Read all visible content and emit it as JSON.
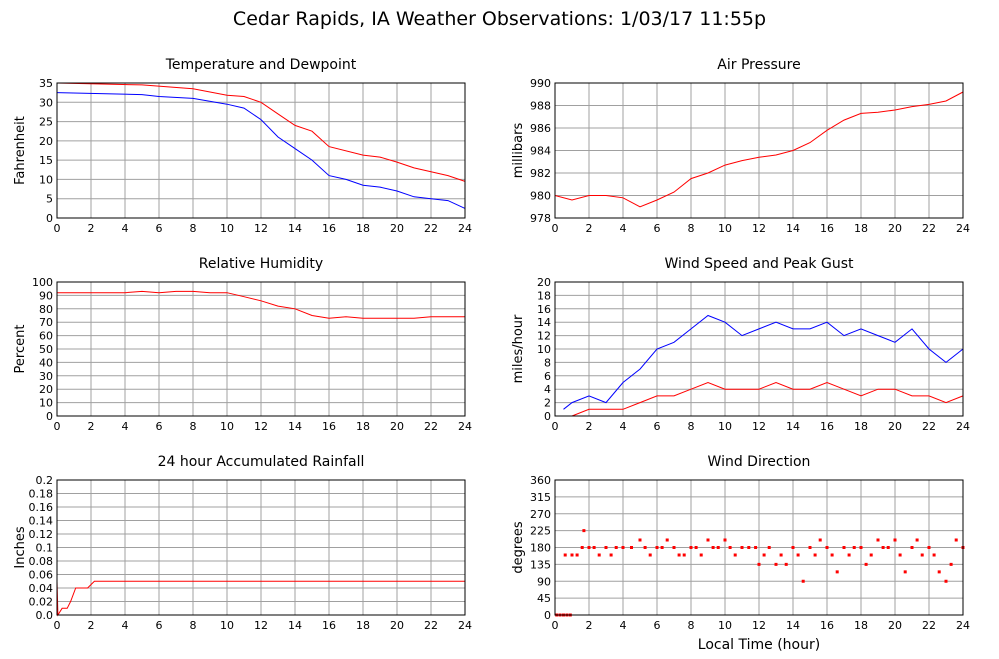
{
  "page": {
    "title": "Cedar Rapids, IA Weather Observations: 1/03/17 11:55p",
    "x_axis_label": "Local Time (hour)"
  },
  "colors": {
    "red": "#ff0000",
    "blue": "#0000ff",
    "grid": "#a0a0a0"
  },
  "chart_data": [
    {
      "id": "temp",
      "type": "line",
      "title": "Temperature and Dewpoint",
      "ylabel": "Fahrenheit",
      "xlim": [
        0,
        24
      ],
      "ylim": [
        0,
        35
      ],
      "x_ticks": [
        0,
        2,
        4,
        6,
        8,
        10,
        12,
        14,
        16,
        18,
        20,
        22,
        24
      ],
      "y_ticks": [
        0,
        5,
        10,
        15,
        20,
        25,
        30,
        35
      ],
      "grid": true,
      "series": [
        {
          "color": "red",
          "points": [
            [
              0,
              35
            ],
            [
              5,
              34.5
            ],
            [
              8,
              33.5
            ],
            [
              10,
              31.8
            ],
            [
              11,
              31.5
            ],
            [
              12,
              30
            ],
            [
              13,
              27
            ],
            [
              14,
              24
            ],
            [
              15,
              22.5
            ],
            [
              16,
              18.5
            ],
            [
              18,
              16.3
            ],
            [
              19,
              15.8
            ],
            [
              20,
              14.5
            ],
            [
              21,
              13
            ],
            [
              22,
              12
            ],
            [
              23,
              11
            ],
            [
              24,
              9.5
            ]
          ]
        },
        {
          "color": "blue",
          "points": [
            [
              0,
              32.5
            ],
            [
              5,
              32
            ],
            [
              6,
              31.5
            ],
            [
              8,
              31
            ],
            [
              10,
              29.5
            ],
            [
              11,
              28.5
            ],
            [
              12,
              25.5
            ],
            [
              13,
              21
            ],
            [
              14,
              18
            ],
            [
              15,
              15
            ],
            [
              16,
              11
            ],
            [
              17,
              10
            ],
            [
              18,
              8.5
            ],
            [
              19,
              8
            ],
            [
              20,
              7
            ],
            [
              21,
              5.5
            ],
            [
              22,
              5
            ],
            [
              23,
              4.5
            ],
            [
              24,
              2.5
            ]
          ]
        }
      ]
    },
    {
      "id": "pressure",
      "type": "line",
      "title": "Air Pressure",
      "ylabel": "millibars",
      "xlim": [
        0,
        24
      ],
      "ylim": [
        978,
        990
      ],
      "x_ticks": [
        0,
        2,
        4,
        6,
        8,
        10,
        12,
        14,
        16,
        18,
        20,
        22,
        24
      ],
      "y_ticks": [
        978,
        980,
        982,
        984,
        986,
        988,
        990
      ],
      "grid": true,
      "series": [
        {
          "color": "red",
          "points": [
            [
              0,
              980
            ],
            [
              1,
              979.6
            ],
            [
              2,
              980
            ],
            [
              3,
              980
            ],
            [
              4,
              979.8
            ],
            [
              5,
              979
            ],
            [
              6,
              979.6
            ],
            [
              7,
              980.3
            ],
            [
              8,
              981.5
            ],
            [
              9,
              982
            ],
            [
              10,
              982.7
            ],
            [
              11,
              983.1
            ],
            [
              12,
              983.4
            ],
            [
              13,
              983.6
            ],
            [
              14,
              984
            ],
            [
              15,
              984.7
            ],
            [
              16,
              985.8
            ],
            [
              17,
              986.7
            ],
            [
              18,
              987.3
            ],
            [
              19,
              987.4
            ],
            [
              20,
              987.6
            ],
            [
              21,
              987.9
            ],
            [
              22,
              988.1
            ],
            [
              23,
              988.4
            ],
            [
              24,
              989.2
            ]
          ]
        }
      ]
    },
    {
      "id": "rh",
      "type": "line",
      "title": "Relative Humidity",
      "ylabel": "Percent",
      "xlim": [
        0,
        24
      ],
      "ylim": [
        0,
        100
      ],
      "x_ticks": [
        0,
        2,
        4,
        6,
        8,
        10,
        12,
        14,
        16,
        18,
        20,
        22,
        24
      ],
      "y_ticks": [
        0,
        10,
        20,
        30,
        40,
        50,
        60,
        70,
        80,
        90,
        100
      ],
      "grid": true,
      "series": [
        {
          "color": "red",
          "points": [
            [
              0,
              92
            ],
            [
              4,
              92
            ],
            [
              5,
              93
            ],
            [
              6,
              92
            ],
            [
              7,
              93
            ],
            [
              8,
              93
            ],
            [
              9,
              92
            ],
            [
              10,
              92
            ],
            [
              11,
              89
            ],
            [
              12,
              86
            ],
            [
              13,
              82
            ],
            [
              14,
              80
            ],
            [
              15,
              75
            ],
            [
              16,
              73
            ],
            [
              17,
              74
            ],
            [
              18,
              73
            ],
            [
              19,
              73
            ],
            [
              20,
              73
            ],
            [
              21,
              73
            ],
            [
              22,
              74
            ],
            [
              23,
              74
            ],
            [
              24,
              74
            ]
          ]
        }
      ]
    },
    {
      "id": "wind",
      "type": "line",
      "title": "Wind Speed and Peak Gust",
      "ylabel": "miles/hour",
      "xlim": [
        0,
        24
      ],
      "ylim": [
        0,
        20
      ],
      "x_ticks": [
        0,
        2,
        4,
        6,
        8,
        10,
        12,
        14,
        16,
        18,
        20,
        22,
        24
      ],
      "y_ticks": [
        0,
        2,
        4,
        6,
        8,
        10,
        12,
        14,
        16,
        18,
        20
      ],
      "grid": true,
      "series": [
        {
          "color": "blue",
          "points": [
            [
              0.5,
              1
            ],
            [
              1,
              2
            ],
            [
              2,
              3
            ],
            [
              3,
              2
            ],
            [
              4,
              5
            ],
            [
              5,
              7
            ],
            [
              6,
              10
            ],
            [
              7,
              11
            ],
            [
              8,
              13
            ],
            [
              9,
              15
            ],
            [
              10,
              14
            ],
            [
              11,
              12
            ],
            [
              12,
              13
            ],
            [
              13,
              14
            ],
            [
              14,
              13
            ],
            [
              15,
              13
            ],
            [
              16,
              14
            ],
            [
              17,
              12
            ],
            [
              18,
              13
            ],
            [
              19,
              12
            ],
            [
              20,
              11
            ],
            [
              21,
              13
            ],
            [
              22,
              10
            ],
            [
              23,
              8
            ],
            [
              24,
              10
            ]
          ]
        },
        {
          "color": "red",
          "points": [
            [
              1,
              0
            ],
            [
              2,
              1
            ],
            [
              3,
              1
            ],
            [
              4,
              1
            ],
            [
              5,
              2
            ],
            [
              6,
              3
            ],
            [
              7,
              3
            ],
            [
              8,
              4
            ],
            [
              9,
              5
            ],
            [
              10,
              4
            ],
            [
              11,
              4
            ],
            [
              12,
              4
            ],
            [
              13,
              5
            ],
            [
              14,
              4
            ],
            [
              15,
              4
            ],
            [
              16,
              5
            ],
            [
              17,
              4
            ],
            [
              18,
              3
            ],
            [
              19,
              4
            ],
            [
              20,
              4
            ],
            [
              21,
              3
            ],
            [
              22,
              3
            ],
            [
              23,
              2
            ],
            [
              24,
              3
            ]
          ]
        }
      ]
    },
    {
      "id": "rain",
      "type": "line",
      "title": "24 hour Accumulated Rainfall",
      "ylabel": "Inches",
      "xlim": [
        0,
        24
      ],
      "ylim": [
        0,
        0.2
      ],
      "x_ticks": [
        0,
        2,
        4,
        6,
        8,
        10,
        12,
        14,
        16,
        18,
        20,
        22,
        24
      ],
      "y_ticks": [
        0,
        0.02,
        0.04,
        0.06,
        0.08,
        0.1,
        0.12,
        0.14,
        0.16,
        0.18,
        0.2
      ],
      "y_tick_labels": [
        "0.0",
        "0.02",
        "0.04",
        "0.06",
        "0.08",
        "0.1",
        "0.12",
        "0.14",
        "0.16",
        "0.18",
        "0.2"
      ],
      "grid": true,
      "series": [
        {
          "color": "red",
          "points": [
            [
              0,
              0.05
            ],
            [
              0.05,
              0.0
            ],
            [
              0.3,
              0.01
            ],
            [
              0.6,
              0.01
            ],
            [
              0.8,
              0.02
            ],
            [
              1.1,
              0.04
            ],
            [
              1.8,
              0.04
            ],
            [
              2.2,
              0.05
            ],
            [
              24,
              0.05
            ]
          ]
        }
      ]
    },
    {
      "id": "direction",
      "type": "scatter",
      "title": "Wind Direction",
      "ylabel": "degrees",
      "xlim": [
        0,
        24
      ],
      "ylim": [
        0,
        360
      ],
      "x_ticks": [
        0,
        2,
        4,
        6,
        8,
        10,
        12,
        14,
        16,
        18,
        20,
        22,
        24
      ],
      "y_ticks": [
        0,
        45,
        90,
        135,
        180,
        225,
        270,
        315,
        360
      ],
      "grid": true,
      "series": [
        {
          "color": "red",
          "points": [
            [
              0.1,
              0
            ],
            [
              0.3,
              0
            ],
            [
              0.5,
              0
            ],
            [
              0.7,
              0
            ],
            [
              0.9,
              0
            ],
            [
              0.6,
              160
            ],
            [
              1.0,
              160
            ],
            [
              1.3,
              160
            ],
            [
              1.6,
              180
            ],
            [
              1.7,
              225
            ],
            [
              2.0,
              180
            ],
            [
              2.3,
              180
            ],
            [
              2.6,
              160
            ],
            [
              3.0,
              180
            ],
            [
              3.3,
              160
            ],
            [
              3.6,
              180
            ],
            [
              4.0,
              180
            ],
            [
              4.5,
              180
            ],
            [
              5.0,
              200
            ],
            [
              5.3,
              180
            ],
            [
              5.6,
              160
            ],
            [
              6.0,
              180
            ],
            [
              6.3,
              180
            ],
            [
              6.6,
              200
            ],
            [
              7.0,
              180
            ],
            [
              7.3,
              160
            ],
            [
              7.6,
              160
            ],
            [
              8.0,
              180
            ],
            [
              8.3,
              180
            ],
            [
              8.6,
              160
            ],
            [
              9.0,
              200
            ],
            [
              9.3,
              180
            ],
            [
              9.6,
              180
            ],
            [
              10.0,
              200
            ],
            [
              10.3,
              180
            ],
            [
              10.6,
              160
            ],
            [
              11.0,
              180
            ],
            [
              11.4,
              180
            ],
            [
              11.8,
              180
            ],
            [
              12.0,
              135
            ],
            [
              12.3,
              160
            ],
            [
              12.6,
              180
            ],
            [
              13.0,
              135
            ],
            [
              13.3,
              160
            ],
            [
              13.6,
              135
            ],
            [
              14.0,
              180
            ],
            [
              14.3,
              160
            ],
            [
              14.6,
              90
            ],
            [
              15.0,
              180
            ],
            [
              15.3,
              160
            ],
            [
              15.6,
              200
            ],
            [
              16.0,
              180
            ],
            [
              16.3,
              160
            ],
            [
              16.6,
              115
            ],
            [
              17.0,
              180
            ],
            [
              17.3,
              160
            ],
            [
              17.6,
              180
            ],
            [
              18.0,
              180
            ],
            [
              18.3,
              135
            ],
            [
              18.6,
              160
            ],
            [
              19.0,
              200
            ],
            [
              19.3,
              180
            ],
            [
              19.6,
              180
            ],
            [
              20.0,
              200
            ],
            [
              20.3,
              160
            ],
            [
              20.6,
              115
            ],
            [
              21.0,
              180
            ],
            [
              21.3,
              200
            ],
            [
              21.6,
              160
            ],
            [
              22.0,
              180
            ],
            [
              22.3,
              160
            ],
            [
              22.6,
              115
            ],
            [
              23.0,
              90
            ],
            [
              23.3,
              135
            ],
            [
              23.6,
              200
            ],
            [
              24.0,
              180
            ]
          ]
        }
      ]
    }
  ]
}
